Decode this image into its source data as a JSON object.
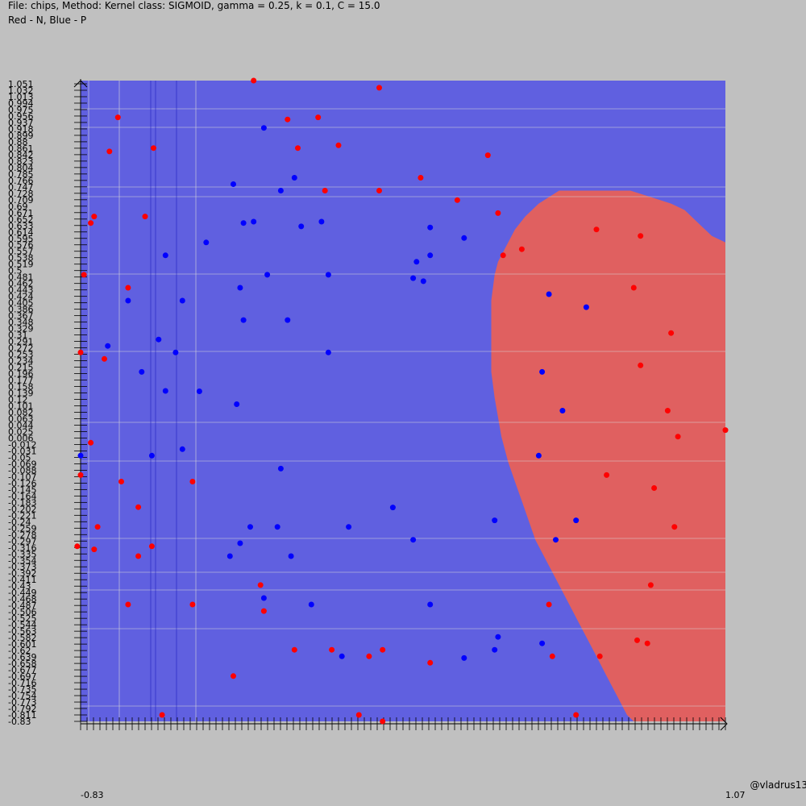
{
  "header": {
    "line1": "File: chips, Method: Kernel class: SIGMOID, gamma = 0.25, k = 0.1, C = 15.0",
    "line2": "Red - N, Blue - P"
  },
  "credit": "@vladrus13",
  "colors": {
    "background": "#c0c0c0",
    "region_p": "#6060e0",
    "region_n": "#e06060",
    "point_p": "#0000ff",
    "point_n": "#ff0000"
  },
  "chart_data": {
    "type": "scatter",
    "title": "File: chips, Method: Kernel class: SIGMOID, gamma = 0.25, k = 0.1, C = 15.0",
    "legend": "Red - N, Blue - P",
    "xlim": [
      -0.83,
      1.07
    ],
    "ylim": [
      -0.83,
      1.051
    ],
    "y_ticks": [
      "1.051",
      "1.032",
      "1.013",
      "0.994",
      "0.975",
      "0.956",
      "0.937",
      "0.918",
      "0.899",
      "0.88",
      "0.861",
      "0.842",
      "0.823",
      "0.804",
      "0.785",
      "0.766",
      "0.747",
      "0.728",
      "0.709",
      "0.69",
      "0.671",
      "0.652",
      "0.633",
      "0.614",
      "0.595",
      "0.576",
      "0.557",
      "0.538",
      "0.519",
      "0.5",
      "0.481",
      "0.462",
      "0.443",
      "0.424",
      "0.405",
      "0.386",
      "0.367",
      "0.348",
      "0.329",
      "0.31",
      "0.291",
      "0.272",
      "0.253",
      "0.234",
      "0.215",
      "0.196",
      "0.177",
      "0.158",
      "0.139",
      "0.12",
      "0.101",
      "0.082",
      "0.063",
      "0.044",
      "0.025",
      "0.006",
      "-0.012",
      "-0.031",
      "-0.05",
      "-0.069",
      "-0.088",
      "-0.107",
      "-0.126",
      "-0.145",
      "-0.164",
      "-0.183",
      "-0.202",
      "-0.221",
      "-0.24",
      "-0.259",
      "-0.278",
      "-0.297",
      "-0.316",
      "-0.335",
      "-0.354",
      "-0.373",
      "-0.392",
      "-0.411",
      "-0.43",
      "-0.449",
      "-0.468",
      "-0.487",
      "-0.506",
      "-0.525",
      "-0.544",
      "-0.563",
      "-0.582",
      "-0.601",
      "-0.62",
      "-0.639",
      "-0.658",
      "-0.677",
      "-0.697",
      "-0.716",
      "-0.735",
      "-0.754",
      "-0.773",
      "-0.792",
      "-0.811",
      "-0.83"
    ],
    "x_tick_labels": [
      "-0.83",
      "1.07"
    ],
    "regions": {
      "n_boundary_left": [
        [
          0.73,
          0.728
        ],
        [
          0.58,
          0.728
        ],
        [
          0.52,
          0.69
        ],
        [
          0.48,
          0.652
        ],
        [
          0.45,
          0.614
        ],
        [
          0.42,
          0.557
        ],
        [
          0.4,
          0.519
        ],
        [
          0.39,
          0.481
        ],
        [
          0.38,
          0.405
        ],
        [
          0.38,
          0.196
        ],
        [
          0.39,
          0.12
        ],
        [
          0.4,
          0.063
        ],
        [
          0.41,
          0.006
        ],
        [
          0.43,
          -0.069
        ],
        [
          0.45,
          -0.126
        ],
        [
          0.47,
          -0.183
        ],
        [
          0.49,
          -0.24
        ],
        [
          0.51,
          -0.297
        ],
        [
          0.54,
          -0.354
        ],
        [
          0.57,
          -0.411
        ],
        [
          0.6,
          -0.468
        ],
        [
          0.63,
          -0.525
        ],
        [
          0.66,
          -0.582
        ],
        [
          0.69,
          -0.639
        ],
        [
          0.72,
          -0.697
        ],
        [
          0.75,
          -0.754
        ],
        [
          0.78,
          -0.811
        ],
        [
          0.8,
          -0.83
        ]
      ],
      "n_boundary_right": [
        [
          1.07,
          -0.83
        ],
        [
          1.07,
          0.576
        ],
        [
          1.03,
          0.595
        ],
        [
          0.99,
          0.633
        ],
        [
          0.95,
          0.671
        ],
        [
          0.91,
          0.69
        ],
        [
          0.85,
          0.709
        ],
        [
          0.79,
          0.728
        ]
      ]
    },
    "series": [
      {
        "name": "N",
        "points": [
          [
            -0.32,
            1.051
          ],
          [
            0.05,
            1.03
          ],
          [
            -0.72,
            0.943
          ],
          [
            -0.22,
            0.937
          ],
          [
            -0.13,
            0.943
          ],
          [
            -0.745,
            0.843
          ],
          [
            -0.615,
            0.853
          ],
          [
            -0.19,
            0.853
          ],
          [
            -0.07,
            0.861
          ],
          [
            0.37,
            0.832
          ],
          [
            0.05,
            0.728
          ],
          [
            0.172,
            0.766
          ],
          [
            -0.11,
            0.728
          ],
          [
            0.28,
            0.7
          ],
          [
            0.4,
            0.662
          ],
          [
            0.47,
            0.556
          ],
          [
            0.69,
            0.614
          ],
          [
            0.82,
            0.595
          ],
          [
            0.415,
            0.538
          ],
          [
            -0.8,
            0.633
          ],
          [
            -0.64,
            0.652
          ],
          [
            -0.79,
            0.652
          ],
          [
            -0.82,
            0.481
          ],
          [
            -0.69,
            0.443
          ],
          [
            0.8,
            0.443
          ],
          [
            0.91,
            0.31
          ],
          [
            -0.83,
            0.253
          ],
          [
            -0.76,
            0.234
          ],
          [
            0.82,
            0.215
          ],
          [
            0.9,
            0.082
          ],
          [
            0.93,
            0.006
          ],
          [
            1.07,
            0.025
          ],
          [
            -0.8,
            -0.012
          ],
          [
            -0.83,
            -0.107
          ],
          [
            -0.71,
            -0.126
          ],
          [
            0.72,
            -0.107
          ],
          [
            0.86,
            -0.145
          ],
          [
            -0.66,
            -0.201
          ],
          [
            -0.78,
            -0.259
          ],
          [
            -0.5,
            -0.126
          ],
          [
            0.92,
            -0.259
          ],
          [
            -0.79,
            -0.325
          ],
          [
            -0.84,
            -0.316
          ],
          [
            -0.62,
            -0.316
          ],
          [
            -0.66,
            -0.345
          ],
          [
            -0.3,
            -0.43
          ],
          [
            -0.69,
            -0.487
          ],
          [
            -0.5,
            -0.487
          ],
          [
            -0.29,
            -0.506
          ],
          [
            0.85,
            -0.43
          ],
          [
            0.84,
            -0.601
          ],
          [
            -0.2,
            -0.62
          ],
          [
            -0.09,
            -0.62
          ],
          [
            0.06,
            -0.62
          ],
          [
            0.2,
            -0.658
          ],
          [
            0.02,
            -0.639
          ],
          [
            0.55,
            -0.487
          ],
          [
            0.56,
            -0.639
          ],
          [
            0.81,
            -0.592
          ],
          [
            0.7,
            -0.639
          ],
          [
            -0.38,
            -0.697
          ],
          [
            -0.01,
            -0.811
          ],
          [
            0.63,
            -0.811
          ],
          [
            -0.59,
            -0.811
          ],
          [
            0.06,
            -0.83
          ]
        ]
      },
      {
        "name": "P",
        "points": [
          [
            -0.29,
            0.912
          ],
          [
            -0.24,
            0.728
          ],
          [
            -0.38,
            0.747
          ],
          [
            -0.2,
            0.766
          ],
          [
            -0.32,
            0.637
          ],
          [
            -0.35,
            0.633
          ],
          [
            -0.18,
            0.623
          ],
          [
            -0.12,
            0.637
          ],
          [
            -0.46,
            0.576
          ],
          [
            -0.58,
            0.538
          ],
          [
            0.2,
            0.62
          ],
          [
            0.3,
            0.589
          ],
          [
            0.2,
            0.538
          ],
          [
            0.16,
            0.519
          ],
          [
            -0.28,
            0.481
          ],
          [
            -0.1,
            0.481
          ],
          [
            -0.36,
            0.443
          ],
          [
            -0.69,
            0.405
          ],
          [
            -0.53,
            0.405
          ],
          [
            -0.6,
            0.291
          ],
          [
            -0.55,
            0.253
          ],
          [
            -0.35,
            0.348
          ],
          [
            0.15,
            0.471
          ],
          [
            0.18,
            0.462
          ],
          [
            0.55,
            0.424
          ],
          [
            0.66,
            0.386
          ],
          [
            -0.22,
            0.348
          ],
          [
            -0.1,
            0.253
          ],
          [
            -0.75,
            0.272
          ],
          [
            -0.65,
            0.196
          ],
          [
            0.53,
            0.196
          ],
          [
            -0.58,
            0.14
          ],
          [
            -0.48,
            0.139
          ],
          [
            -0.37,
            0.101
          ],
          [
            0.59,
            0.082
          ],
          [
            -0.53,
            -0.031
          ],
          [
            -0.62,
            -0.05
          ],
          [
            -0.83,
            -0.05
          ],
          [
            0.52,
            -0.05
          ],
          [
            -0.24,
            -0.088
          ],
          [
            0.09,
            -0.202
          ],
          [
            -0.33,
            -0.259
          ],
          [
            -0.25,
            -0.259
          ],
          [
            -0.04,
            -0.259
          ],
          [
            -0.36,
            -0.307
          ],
          [
            -0.39,
            -0.345
          ],
          [
            -0.21,
            -0.345
          ],
          [
            0.39,
            -0.24
          ],
          [
            0.63,
            -0.24
          ],
          [
            0.57,
            -0.297
          ],
          [
            0.15,
            -0.297
          ],
          [
            -0.29,
            -0.468
          ],
          [
            -0.15,
            -0.487
          ],
          [
            0.2,
            -0.487
          ],
          [
            0.4,
            -0.582
          ],
          [
            0.39,
            -0.62
          ],
          [
            0.53,
            -0.601
          ],
          [
            0.3,
            -0.644
          ],
          [
            -0.06,
            -0.639
          ]
        ]
      }
    ]
  }
}
